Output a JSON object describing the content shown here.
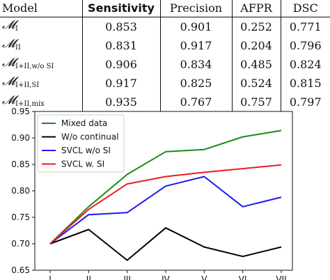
{
  "table": {
    "headers": [
      "Model",
      "Sensitivity",
      "Precision",
      "AFPR",
      "DSC"
    ],
    "rows": [
      {
        "sym": "𝓜",
        "sub": "I",
        "values": [
          "0.853",
          "0.901",
          "0.252",
          "0.771"
        ]
      },
      {
        "sym": "𝓜",
        "sub": "II",
        "values": [
          "0.831",
          "0.917",
          "0.204",
          "0.796"
        ]
      },
      {
        "sym": "𝓜",
        "sub": "I+II,w/o SI",
        "values": [
          "0.906",
          "0.834",
          "0.485",
          "0.824"
        ]
      },
      {
        "sym": "𝓜",
        "sub": "I+II,SI",
        "values": [
          "0.917",
          "0.825",
          "0.524",
          "0.815"
        ]
      },
      {
        "sym": "𝓜",
        "sub": "I+II,mix",
        "values": [
          "0.935",
          "0.767",
          "0.757",
          "0.797"
        ]
      }
    ]
  },
  "chart_data": {
    "type": "line",
    "categories": [
      "I",
      "II",
      "III",
      "IV",
      "V",
      "VI",
      "VII"
    ],
    "ylim": [
      0.65,
      0.95
    ],
    "yticks": [
      "0.65",
      "0.70",
      "0.75",
      "0.80",
      "0.85",
      "0.90",
      "0.95"
    ],
    "grid": false,
    "legend_position": "top-left",
    "series": [
      {
        "name": "Mixed data",
        "color": "#1a8a1a",
        "values": [
          0.7,
          0.77,
          0.831,
          0.874,
          0.878,
          0.902,
          0.914
        ]
      },
      {
        "name": "W/o continual",
        "color": "#000000",
        "values": [
          0.7,
          0.727,
          0.669,
          0.73,
          0.694,
          0.676,
          0.694
        ]
      },
      {
        "name": "SVCL w/o SI",
        "color": "#1a1aee",
        "values": [
          0.7,
          0.755,
          0.759,
          0.809,
          0.827,
          0.77,
          0.788
        ]
      },
      {
        "name": "SVCL w. SI",
        "color": "#ee1a1a",
        "values": [
          0.7,
          0.765,
          0.813,
          0.827,
          0.835,
          0.842,
          0.849
        ]
      }
    ]
  }
}
